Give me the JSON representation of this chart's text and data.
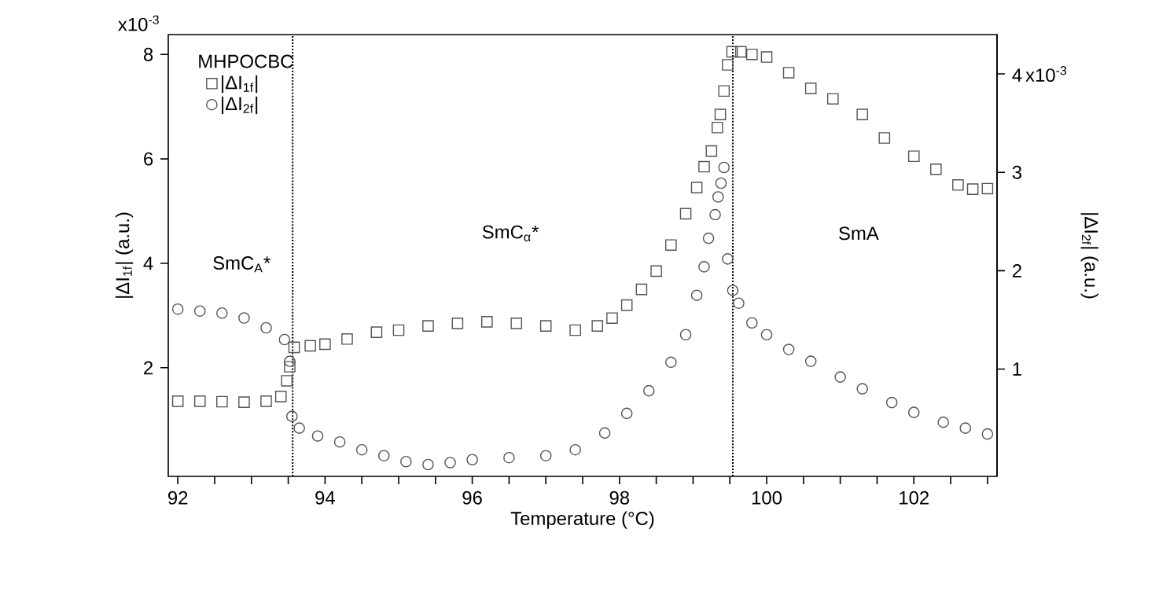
{
  "chart_data": {
    "type": "scatter",
    "xlabel": "Temperature (°C)",
    "ylabel": "|ΔI$_{1f}$| (a.u.)",
    "y2label": "|ΔI$_{2f}$| (a.u.)",
    "legend_title": "MHPOCBC",
    "legend": "top left",
    "grid": false,
    "xlim": [
      91.87,
      103.13
    ],
    "ylim": [
      -0.08,
      8.38
    ],
    "y2lim": [
      -0.09,
      4.4
    ],
    "xticks": [
      92,
      {
        "value": 92.5,
        "label": null
      },
      {
        "value": 93,
        "label": null
      },
      {
        "value": 93.5,
        "label": null
      },
      94,
      {
        "value": 94.5,
        "label": null
      },
      {
        "value": 95,
        "label": null
      },
      {
        "value": 95.5,
        "label": null
      },
      96,
      {
        "value": 96.5,
        "label": null
      },
      {
        "value": 97,
        "label": null
      },
      {
        "value": 97.5,
        "label": null
      },
      98,
      {
        "value": 98.5,
        "label": null
      },
      {
        "value": 99,
        "label": null
      },
      {
        "value": 99.5,
        "label": null
      },
      100,
      {
        "value": 100.5,
        "label": null
      },
      {
        "value": 101,
        "label": null
      },
      {
        "value": 101.5,
        "label": null
      },
      102,
      {
        "value": 102.5,
        "label": null
      },
      {
        "value": 103,
        "label": null
      }
    ],
    "yticks": [
      2,
      4,
      6,
      8
    ],
    "y2ticks": [
      1,
      2,
      3,
      4
    ],
    "ref_lines": [
      {
        "axis": "x",
        "value": 93.56,
        "line_style": "dotted",
        "color": "#000000"
      },
      {
        "axis": "x",
        "value": 99.54,
        "line_style": "dotted",
        "color": "#000000"
      }
    ],
    "annotations": [
      "SmC$_{A}$*",
      "SmC$_{α}$*",
      "SmA",
      "x10$^{-3}$",
      "x10$^{-3}$"
    ],
    "series": [
      {
        "name": "|ΔI$_{1f}$|",
        "color": "#555555",
        "marker": "square",
        "x": [
          92.0,
          92.3,
          92.6,
          92.9,
          93.2,
          93.4,
          93.48,
          93.52,
          93.58,
          93.8,
          94.0,
          94.3,
          94.7,
          95.0,
          95.4,
          95.8,
          96.2,
          96.6,
          97.0,
          97.4,
          97.7,
          97.9,
          98.1,
          98.3,
          98.5,
          98.7,
          98.9,
          99.05,
          99.15,
          99.25,
          99.33,
          99.37,
          99.42,
          99.47,
          99.53,
          99.65,
          99.8,
          100.0,
          100.3,
          100.6,
          100.9,
          101.3,
          101.6,
          102.0,
          102.3,
          102.6,
          102.8,
          103.0
        ],
        "values": [
          1.36,
          1.36,
          1.35,
          1.34,
          1.36,
          1.45,
          1.75,
          2.02,
          2.39,
          2.42,
          2.45,
          2.55,
          2.68,
          2.72,
          2.8,
          2.85,
          2.88,
          2.85,
          2.8,
          2.72,
          2.8,
          2.95,
          3.2,
          3.5,
          3.85,
          4.35,
          4.95,
          5.45,
          5.85,
          6.15,
          6.6,
          6.85,
          7.3,
          7.8,
          8.05,
          8.05,
          8.0,
          7.95,
          7.65,
          7.35,
          7.15,
          6.85,
          6.4,
          6.05,
          5.8,
          5.5,
          5.42,
          5.43
        ]
      },
      {
        "name": "|ΔI$_{2f}$|",
        "color": "#555555",
        "marker": "circle",
        "axis": "y2",
        "x": [
          92.0,
          92.3,
          92.6,
          92.9,
          93.2,
          93.45,
          93.52,
          93.55,
          93.65,
          93.9,
          94.2,
          94.5,
          94.8,
          95.1,
          95.4,
          95.7,
          96.0,
          96.5,
          97.0,
          97.4,
          97.8,
          98.1,
          98.4,
          98.7,
          98.9,
          99.05,
          99.15,
          99.21,
          99.3,
          99.34,
          99.38,
          99.42,
          99.47,
          99.54,
          99.62,
          99.8,
          100.0,
          100.3,
          100.6,
          101.0,
          101.3,
          101.7,
          102.0,
          102.4,
          102.7,
          103.0
        ],
        "values": [
          1.61,
          1.59,
          1.57,
          1.52,
          1.42,
          1.3,
          1.08,
          0.52,
          0.4,
          0.32,
          0.26,
          0.18,
          0.12,
          0.06,
          0.03,
          0.05,
          0.08,
          0.1,
          0.12,
          0.18,
          0.35,
          0.55,
          0.78,
          1.07,
          1.35,
          1.75,
          2.04,
          2.33,
          2.57,
          2.75,
          2.89,
          3.05,
          2.12,
          1.8,
          1.67,
          1.47,
          1.35,
          1.2,
          1.08,
          0.92,
          0.8,
          0.66,
          0.56,
          0.46,
          0.4,
          0.34
        ]
      }
    ]
  }
}
